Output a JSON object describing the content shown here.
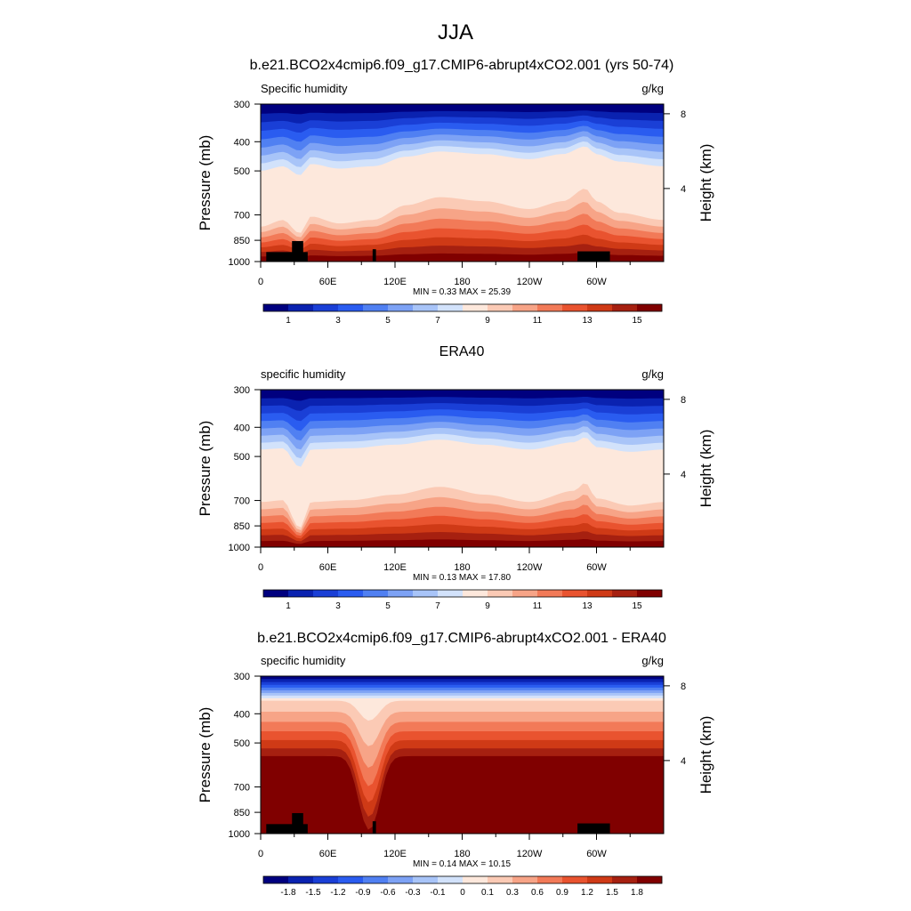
{
  "main_title": "JJA",
  "chart_data": [
    {
      "type": "contour",
      "title": "b.e21.BCO2x4cmip6.f09_g17.CMIP6-abrupt4xCO2.001 (yrs 50-74)",
      "left_label": "Specific humidity",
      "units": "g/kg",
      "ylabel": "Pressure (mb)",
      "ylabel_right": "Height (km)",
      "y_ticks": [
        "300",
        "400",
        "500",
        "700",
        "850",
        "1000"
      ],
      "y_tick_values": [
        300,
        400,
        500,
        700,
        850,
        1000
      ],
      "right_ticks": [
        "8",
        "4"
      ],
      "right_tick_values": [
        8,
        4
      ],
      "x_ticks": [
        "0",
        "60E",
        "120E",
        "180",
        "120W",
        "60W"
      ],
      "x_tick_values": [
        0,
        60,
        120,
        180,
        240,
        300
      ],
      "xlim": [
        0,
        360
      ],
      "ylim": [
        1000,
        300
      ],
      "stats": "MIN =   0.33  MAX =  25.39",
      "min": 0.33,
      "max": 25.39,
      "colorbar_labels": [
        "1",
        "3",
        "5",
        "7",
        "9",
        "11",
        "13",
        "15"
      ],
      "levels": [
        0,
        1,
        2,
        3,
        4,
        5,
        6,
        7,
        8,
        9,
        10,
        11,
        12,
        13,
        14,
        15
      ],
      "palette": [
        "#00007f",
        "#0a22b0",
        "#1a3fd6",
        "#2a5cf0",
        "#5080f2",
        "#7da2f5",
        "#a8c4f8",
        "#d2e2fb",
        "#fde8dc",
        "#fbcab5",
        "#f7a487",
        "#f27a58",
        "#e9532f",
        "#cf3a16",
        "#a62010",
        "#800000"
      ],
      "surface_color": "#000000"
    },
    {
      "type": "contour",
      "title": "ERA40",
      "left_label": "specific humidity",
      "units": "g/kg",
      "ylabel": "Pressure (mb)",
      "ylabel_right": "Height (km)",
      "y_ticks": [
        "300",
        "400",
        "500",
        "700",
        "850",
        "1000"
      ],
      "y_tick_values": [
        300,
        400,
        500,
        700,
        850,
        1000
      ],
      "right_ticks": [
        "8",
        "4"
      ],
      "right_tick_values": [
        8,
        4
      ],
      "x_ticks": [
        "0",
        "60E",
        "120E",
        "180",
        "120W",
        "60W"
      ],
      "x_tick_values": [
        0,
        60,
        120,
        180,
        240,
        300
      ],
      "xlim": [
        0,
        360
      ],
      "ylim": [
        1000,
        300
      ],
      "stats": "MIN =   0.13  MAX =  17.80",
      "min": 0.13,
      "max": 17.8,
      "colorbar_labels": [
        "1",
        "3",
        "5",
        "7",
        "9",
        "11",
        "13",
        "15"
      ],
      "levels": [
        0,
        1,
        2,
        3,
        4,
        5,
        6,
        7,
        8,
        9,
        10,
        11,
        12,
        13,
        14,
        15
      ],
      "palette": [
        "#00007f",
        "#0a22b0",
        "#1a3fd6",
        "#2a5cf0",
        "#5080f2",
        "#7da2f5",
        "#a8c4f8",
        "#d2e2fb",
        "#fde8dc",
        "#fbcab5",
        "#f7a487",
        "#f27a58",
        "#e9532f",
        "#cf3a16",
        "#a62010",
        "#800000"
      ]
    },
    {
      "type": "contour",
      "title": "b.e21.BCO2x4cmip6.f09_g17.CMIP6-abrupt4xCO2.001 - ERA40",
      "left_label": "specific humidity",
      "units": "g/kg",
      "ylabel": "Pressure (mb)",
      "ylabel_right": "Height (km)",
      "y_ticks": [
        "300",
        "400",
        "500",
        "700",
        "850",
        "1000"
      ],
      "y_tick_values": [
        300,
        400,
        500,
        700,
        850,
        1000
      ],
      "right_ticks": [
        "8",
        "4"
      ],
      "right_tick_values": [
        8,
        4
      ],
      "x_ticks": [
        "0",
        "60E",
        "120E",
        "180",
        "120W",
        "60W"
      ],
      "x_tick_values": [
        0,
        60,
        120,
        180,
        240,
        300
      ],
      "xlim": [
        0,
        360
      ],
      "ylim": [
        1000,
        300
      ],
      "stats": "MIN =   0.14  MAX =  10.15",
      "min": 0.14,
      "max": 10.15,
      "colorbar_labels": [
        "-1.8",
        "-1.5",
        "-1.2",
        "-0.9",
        "-0.6",
        "-0.3",
        "-0.1",
        "0",
        "0.1",
        "0.3",
        "0.6",
        "0.9",
        "1.2",
        "1.5",
        "1.8"
      ],
      "levels": [
        -1.8,
        -1.5,
        -1.2,
        -0.9,
        -0.6,
        -0.3,
        -0.1,
        0,
        0.1,
        0.3,
        0.6,
        0.9,
        1.2,
        1.5,
        1.8
      ],
      "palette": [
        "#00007f",
        "#0a22b0",
        "#1a3fd6",
        "#2a5cf0",
        "#5080f2",
        "#7da2f5",
        "#a8c4f8",
        "#d2e2fb",
        "#fde8dc",
        "#fbcab5",
        "#f7a487",
        "#f27a58",
        "#e9532f",
        "#cf3a16",
        "#a62010",
        "#800000"
      ],
      "surface_color": "#000000"
    }
  ]
}
